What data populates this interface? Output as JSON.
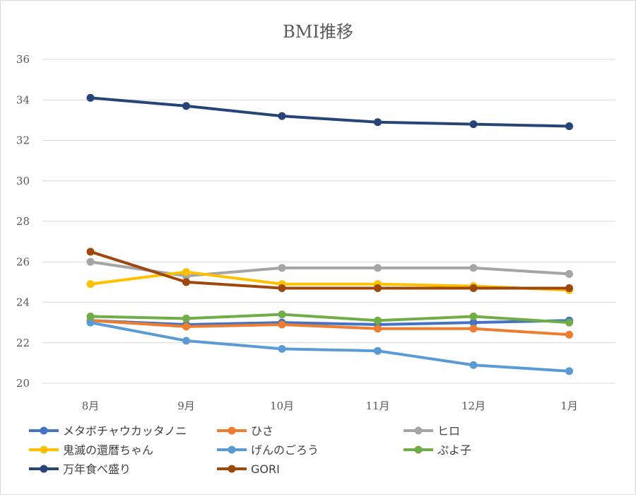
{
  "chart_data": {
    "type": "line",
    "title": "BMI推移",
    "xlabel": "",
    "ylabel": "",
    "categories": [
      "8月",
      "9月",
      "10月",
      "11月",
      "12月",
      "1月"
    ],
    "ylim": [
      20,
      36
    ],
    "yticks": [
      20,
      22,
      24,
      26,
      28,
      30,
      32,
      34,
      36
    ],
    "grid": true,
    "legend_position": "bottom",
    "series": [
      {
        "name": "メタボチャウカッタノニ",
        "color": "#4472C4",
        "values": [
          23.1,
          22.9,
          23.0,
          22.9,
          23.0,
          23.1
        ]
      },
      {
        "name": "ひさ",
        "color": "#ED7D31",
        "values": [
          23.1,
          22.8,
          22.9,
          22.7,
          22.7,
          22.4
        ]
      },
      {
        "name": "ヒロ",
        "color": "#A5A5A5",
        "values": [
          26.0,
          25.3,
          25.7,
          25.7,
          25.7,
          25.4
        ]
      },
      {
        "name": "鬼滅の還暦ちゃん",
        "color": "#FFC000",
        "values": [
          24.9,
          25.5,
          24.9,
          24.9,
          24.8,
          24.6
        ]
      },
      {
        "name": "げんのごろう",
        "color": "#5B9BD5",
        "values": [
          23.0,
          22.1,
          21.7,
          21.6,
          20.9,
          20.6
        ]
      },
      {
        "name": "ぷよ子",
        "color": "#70AD47",
        "values": [
          23.3,
          23.2,
          23.4,
          23.1,
          23.3,
          23.0
        ]
      },
      {
        "name": "万年食べ盛り",
        "color": "#264478",
        "values": [
          34.1,
          33.7,
          33.2,
          32.9,
          32.8,
          32.7
        ]
      },
      {
        "name": "GORI",
        "color": "#9E480E",
        "values": [
          26.5,
          25.0,
          24.7,
          24.7,
          24.7,
          24.7
        ]
      }
    ]
  }
}
